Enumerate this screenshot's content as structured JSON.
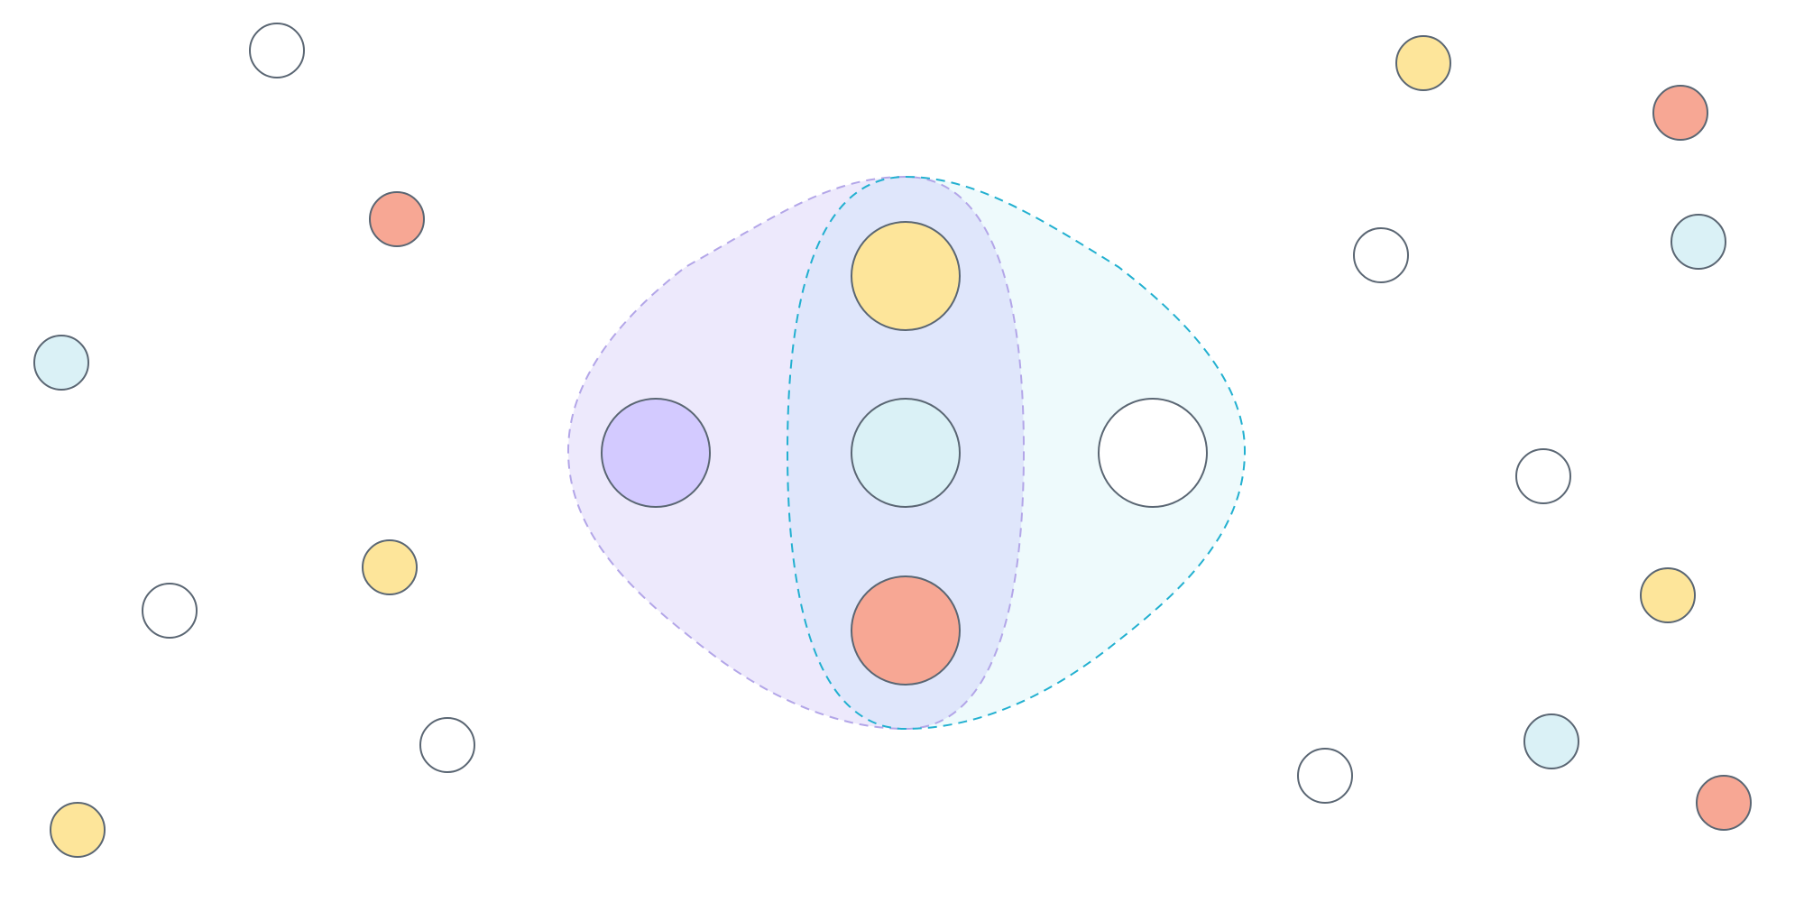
{
  "diagram": {
    "type": "venn-like cluster diagram",
    "palette": {
      "stroke": "#5a6673",
      "yellow": "#fde59a",
      "salmon": "#f7a794",
      "light_blue": "#daf1f6",
      "lavender": "#d3caff",
      "white": "#ffffff"
    },
    "regions": [
      {
        "id": "left-set",
        "fill": "#ede9fc",
        "stroke": "#b3a6e8"
      },
      {
        "id": "right-set",
        "fill": "#eefafc",
        "stroke": "#22b0d0"
      },
      {
        "id": "overlap",
        "fill": "#dfe6fb"
      }
    ],
    "members": [
      {
        "set": "left-only",
        "color": "lavender"
      },
      {
        "set": "overlap",
        "color": "yellow"
      },
      {
        "set": "overlap",
        "color": "light_blue"
      },
      {
        "set": "overlap",
        "color": "salmon"
      },
      {
        "set": "right-only",
        "color": "white"
      }
    ],
    "outside_nodes": [
      {
        "color": "white"
      },
      {
        "color": "salmon"
      },
      {
        "color": "light_blue"
      },
      {
        "color": "yellow"
      },
      {
        "color": "white"
      },
      {
        "color": "white"
      },
      {
        "color": "yellow"
      },
      {
        "color": "yellow"
      },
      {
        "color": "salmon"
      },
      {
        "color": "white"
      },
      {
        "color": "light_blue"
      },
      {
        "color": "white"
      },
      {
        "color": "yellow"
      },
      {
        "color": "light_blue"
      },
      {
        "color": "white"
      },
      {
        "color": "salmon"
      }
    ]
  }
}
